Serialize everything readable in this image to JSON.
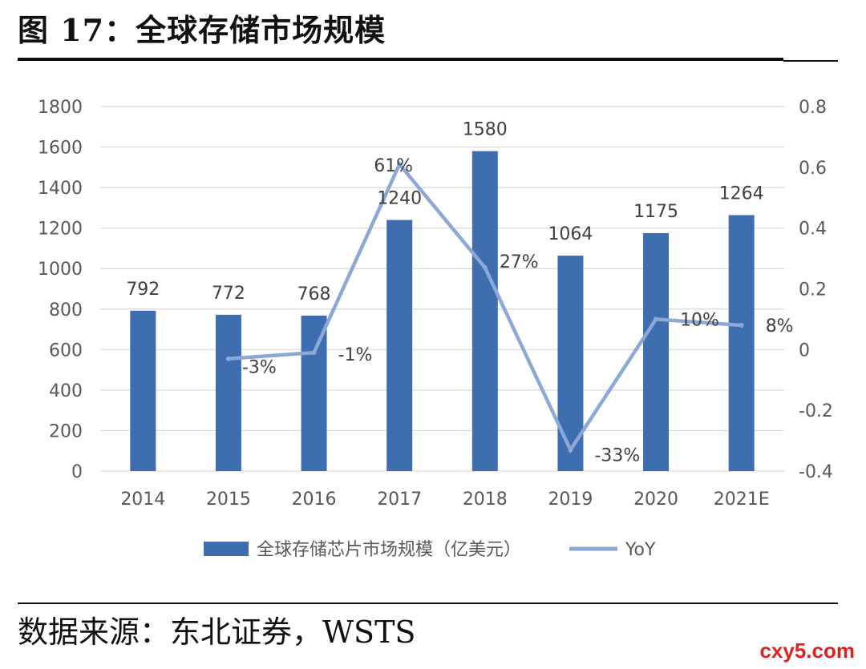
{
  "figure": {
    "title": "图 17：全球存储市场规模",
    "source": "数据来源：东北证券，WSTS",
    "watermark": "cxy5.com"
  },
  "colors": {
    "bar": "#3f6eb0",
    "line": "#8ca8d6",
    "grid": "#d9d9d9",
    "text": "#595959"
  },
  "chart_data": {
    "type": "bar",
    "title": "",
    "categories": [
      "2014",
      "2015",
      "2016",
      "2017",
      "2018",
      "2019",
      "2020",
      "2021E"
    ],
    "series": [
      {
        "name": "全球存储芯片市场规模（亿美元）",
        "axis": "left",
        "kind": "bar",
        "values": [
          792,
          772,
          768,
          1240,
          1580,
          1064,
          1175,
          1264
        ],
        "labels": [
          "792",
          "772",
          "768",
          "1240",
          "1580",
          "1064",
          "1175",
          "1264"
        ]
      },
      {
        "name": "YoY",
        "axis": "right",
        "kind": "line",
        "values": [
          null,
          -0.03,
          -0.01,
          0.61,
          0.27,
          -0.33,
          0.1,
          0.08
        ],
        "labels": [
          "",
          "-3%",
          "-1%",
          "61%",
          "27%",
          "-33%",
          "10%",
          "8%"
        ]
      }
    ],
    "y_left": {
      "ylim": [
        0,
        1800
      ],
      "ticks": [
        "0",
        "200",
        "400",
        "600",
        "800",
        "1000",
        "1200",
        "1400",
        "1600",
        "1800"
      ],
      "tick_values": [
        0,
        200,
        400,
        600,
        800,
        1000,
        1200,
        1400,
        1600,
        1800
      ]
    },
    "y_right": {
      "ylim": [
        -0.4,
        0.8
      ],
      "ticks": [
        "-0.4",
        "-0.2",
        "0",
        "0.2",
        "0.4",
        "0.6",
        "0.8"
      ],
      "tick_values": [
        -0.4,
        -0.2,
        0,
        0.2,
        0.4,
        0.6,
        0.8
      ]
    },
    "xlabel": "",
    "ylabel": "",
    "grid": true,
    "legend_position": "bottom"
  }
}
